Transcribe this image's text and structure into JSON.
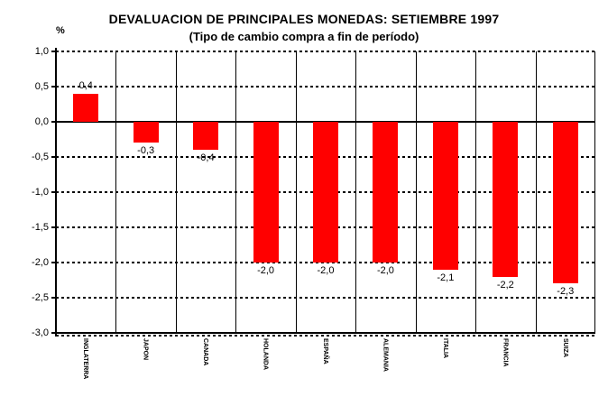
{
  "chart_data": {
    "type": "bar",
    "title": "DEVALUACION DE PRINCIPALES MONEDAS: SETIEMBRE 1997",
    "subtitle": "(Tipo de cambio compra a fin de período)",
    "unit_label": "%",
    "categories": [
      "INGLATERRA",
      "JAPON",
      "CANADA",
      "HOLANDA",
      "ESPAÑA",
      "ALEMANIA",
      "ITALIA",
      "FRANCIA",
      "SUIZA"
    ],
    "values": [
      0.4,
      -0.3,
      -0.4,
      -2.0,
      -2.0,
      -2.0,
      -2.1,
      -2.2,
      -2.3
    ],
    "data_labels": [
      "0,4",
      "-0,3",
      "-0,4",
      "-2,0",
      "-2,0",
      "-2,0",
      "-2,1",
      "-2,2",
      "-2,3"
    ],
    "y_ticks": [
      "1,0",
      "0,5",
      "0,0",
      "-0,5",
      "-1,0",
      "-1,5",
      "-2,0",
      "-2,5",
      "-3,0"
    ],
    "y_tick_values": [
      1.0,
      0.5,
      0.0,
      -0.5,
      -1.0,
      -1.5,
      -2.0,
      -2.5,
      -3.0
    ],
    "ylim": [
      -3.0,
      1.0
    ],
    "bar_color": "#FF0000",
    "axis_color": "#000000",
    "background_color": "#FFFFFF",
    "grid": {
      "horizontal": "dotted",
      "vertical": "solid",
      "zero_line": "solid"
    },
    "legend": "none",
    "x_label_rotation": "vertical"
  }
}
